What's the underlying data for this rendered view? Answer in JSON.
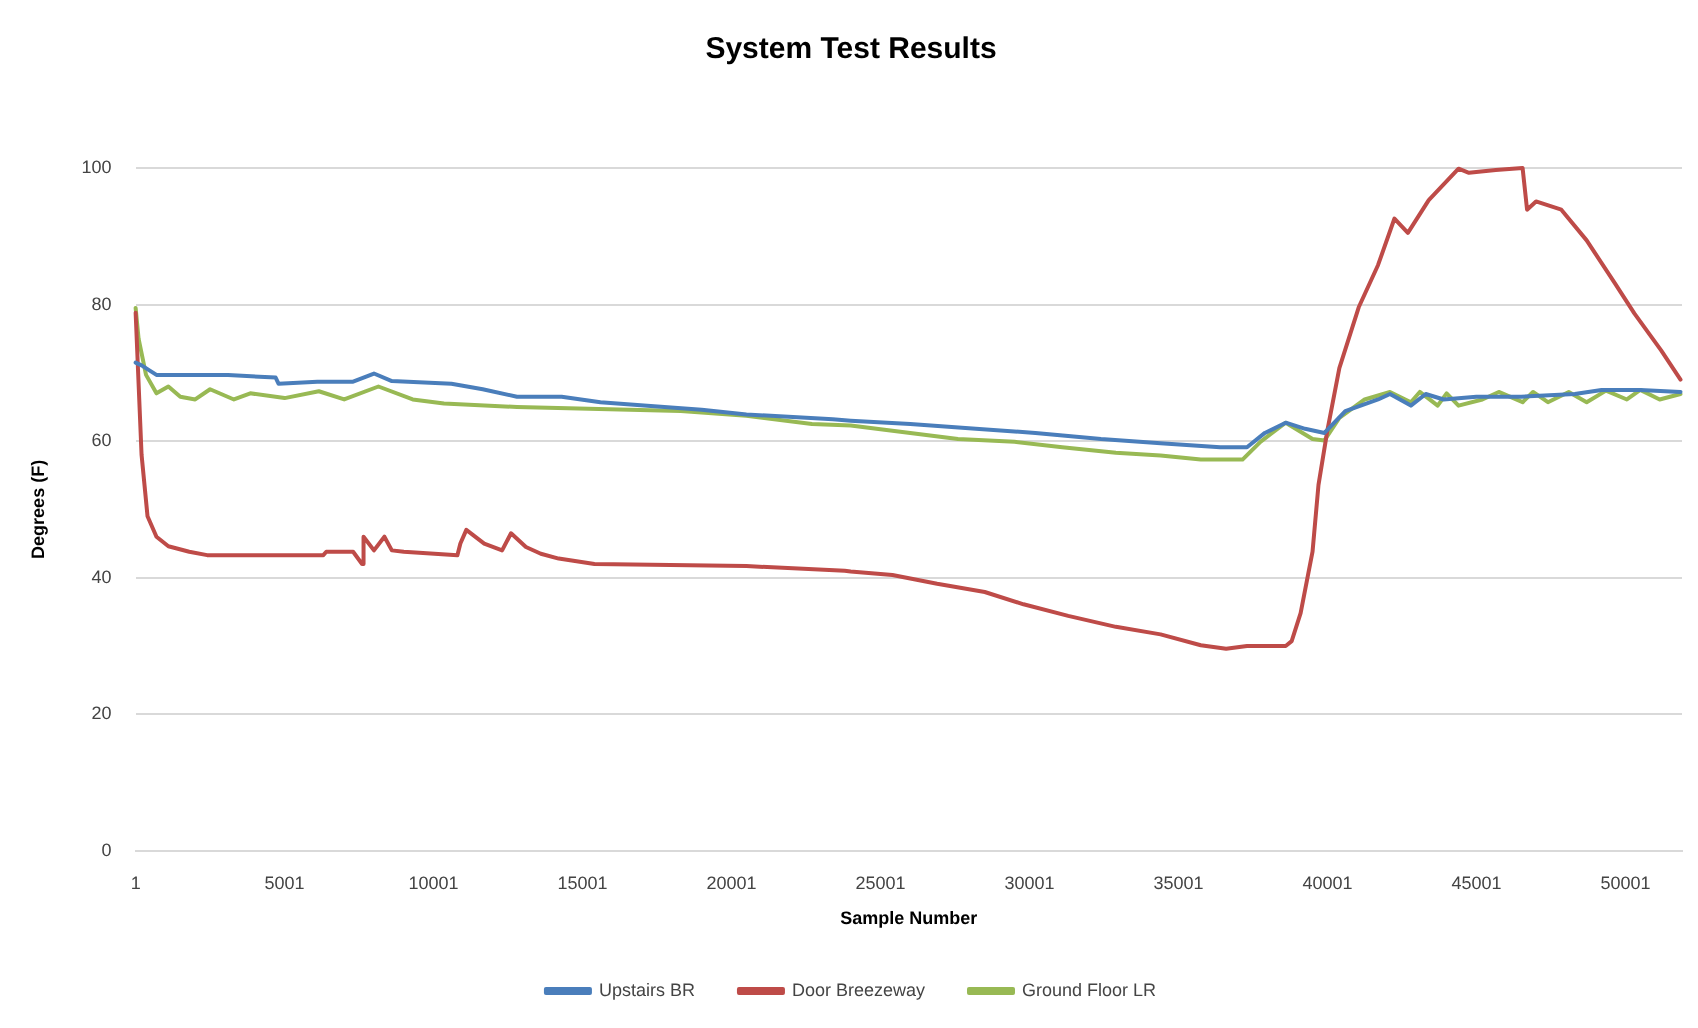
{
  "chart_data": {
    "type": "line",
    "title": "System Test Results",
    "xlabel": "Sample Number",
    "ylabel": "Degrees (F)",
    "xlim": [
      1,
      51900
    ],
    "xticks": [
      1,
      5001,
      10001,
      15001,
      20001,
      25001,
      30001,
      35001,
      40001,
      45001,
      50001
    ],
    "ylim": [
      0,
      100
    ],
    "yticks": [
      0,
      20,
      40,
      60,
      80,
      100
    ],
    "grid": "y",
    "legend": "bottom",
    "marker": "none",
    "line_style": "solid",
    "series": [
      {
        "name": "Upstairs BR",
        "color": "#4a7ebb",
        "x": [
          1,
          200,
          700,
          3100,
          4700,
          4800,
          6100,
          7300,
          8000,
          8600,
          10600,
          11650,
          12800,
          14300,
          15600,
          17400,
          19000,
          20500,
          23400,
          24000,
          26000,
          28200,
          30200,
          32400,
          34400,
          36400,
          37300,
          37900,
          38600,
          39250,
          39900,
          40600,
          41700,
          42100,
          42800,
          43300,
          43900,
          45000,
          46500,
          48300,
          49200,
          50500,
          51850
        ],
        "values": [
          71.5,
          71.1,
          69.7,
          69.7,
          69.3,
          68.4,
          68.7,
          68.7,
          69.9,
          68.8,
          68.4,
          67.6,
          66.5,
          66.5,
          65.7,
          65.1,
          64.6,
          63.9,
          63.2,
          63,
          62.5,
          61.8,
          61.2,
          60.3,
          59.7,
          59.1,
          59.1,
          61.2,
          62.7,
          61.8,
          61.2,
          64.4,
          66.1,
          66.9,
          65.2,
          66.9,
          66.1,
          66.5,
          66.5,
          66.9,
          67.5,
          67.5,
          67.2
        ]
      },
      {
        "name": "Door Breezeway",
        "color": "#be4b48",
        "x": [
          1,
          200,
          400,
          700,
          1100,
          1800,
          2400,
          6300,
          6400,
          7300,
          7600,
          7650,
          8000,
          8350,
          8600,
          9000,
          10800,
          10900,
          11100,
          11700,
          12300,
          12600,
          13100,
          13600,
          14200,
          15400,
          20500,
          23800,
          24000,
          25400,
          26900,
          28500,
          29800,
          31300,
          32900,
          34400,
          35750,
          36600,
          37300,
          38600,
          38800,
          39100,
          39500,
          39700,
          40000,
          40400,
          41050,
          41700,
          42250,
          42700,
          43400,
          44400,
          44750,
          45650,
          46550,
          46700,
          47000,
          47850,
          48700,
          49650,
          50300,
          51200,
          51850
        ],
        "values": [
          78.8,
          58,
          49,
          46,
          44.6,
          43.8,
          43.3,
          43.3,
          43.8,
          43.8,
          42,
          46,
          44,
          46,
          44,
          43.8,
          43.3,
          45,
          47,
          45,
          44,
          46.5,
          44.5,
          43.5,
          42.8,
          42,
          41.7,
          41,
          40.9,
          40.4,
          39.1,
          37.9,
          36.1,
          34.4,
          32.8,
          31.7,
          30.1,
          29.6,
          30,
          30,
          30.7,
          34.8,
          43.8,
          53.6,
          61.6,
          70.7,
          79.6,
          85.8,
          92.6,
          90.5,
          95.3,
          99.9,
          99.3,
          99.7,
          100,
          93.9,
          95.1,
          93.9,
          89.4,
          83.1,
          78.7,
          73.3,
          69
        ]
      },
      {
        "name": "Ground Floor LR",
        "color": "#98b954",
        "x": [
          1,
          100,
          350,
          700,
          1100,
          1500,
          2000,
          2500,
          3300,
          3850,
          5000,
          6150,
          7000,
          8150,
          9300,
          10350,
          12800,
          18300,
          20500,
          22700,
          24000,
          26000,
          27600,
          29500,
          31100,
          32900,
          34400,
          35750,
          37150,
          37750,
          38600,
          39500,
          39900,
          40400,
          41250,
          42100,
          42800,
          43100,
          43700,
          44000,
          44400,
          45200,
          45750,
          46550,
          46900,
          47400,
          48100,
          48700,
          49350,
          50050,
          50500,
          51150,
          51850
        ],
        "values": [
          79.5,
          75,
          69.7,
          67,
          68,
          66.5,
          66.1,
          67.6,
          66.1,
          67,
          66.3,
          67.3,
          66.1,
          68,
          66.1,
          65.5,
          65,
          64.4,
          63.7,
          62.5,
          62.3,
          61.2,
          60.3,
          59.9,
          59.1,
          58.3,
          57.9,
          57.3,
          57.3,
          59.9,
          62.7,
          60.3,
          60.1,
          63.4,
          66.1,
          67.2,
          65.7,
          67.2,
          65.2,
          67,
          65.2,
          66.1,
          67.2,
          65.7,
          67.2,
          65.7,
          67.2,
          65.7,
          67.4,
          66.1,
          67.5,
          66.1,
          66.9
        ]
      }
    ]
  }
}
